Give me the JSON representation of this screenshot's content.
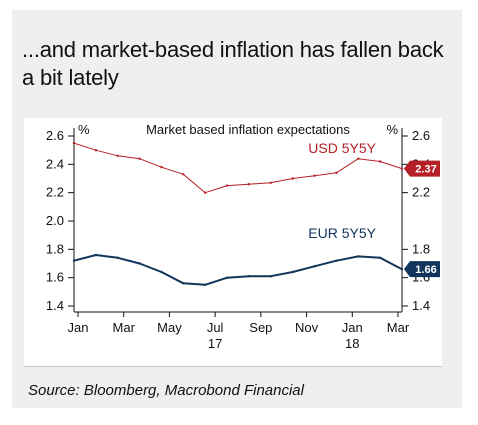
{
  "headline": "...and market-based inflation has fallen back a bit lately",
  "source": "Source: Bloomberg, Macrobond Financial",
  "colors": {
    "usd": "#b42025",
    "eur": "#12355b",
    "grid": "#cfcfcf",
    "text": "#111111"
  },
  "chart_data": {
    "type": "line",
    "title": "Market based inflation expectations",
    "y_unit_left": "%",
    "y_unit_right": "%",
    "ylim": [
      1.4,
      2.6
    ],
    "y_ticks": [
      "1.4",
      "1.6",
      "1.8",
      "2.0",
      "2.2",
      "2.4",
      "2.6"
    ],
    "y_ticks_right": [
      "1.4",
      "1.6",
      "1.8",
      "2.2",
      "2.4",
      "2.6"
    ],
    "x_ticks": [
      "Jan",
      "Mar",
      "May",
      "Jul",
      "Sep",
      "Nov",
      "Jan",
      "Mar"
    ],
    "x_year_labels": [
      "17",
      "18"
    ],
    "grid": false,
    "x": [
      "2016-12",
      "2017-01",
      "2017-02",
      "2017-03",
      "2017-04",
      "2017-05",
      "2017-06",
      "2017-07",
      "2017-08",
      "2017-09",
      "2017-10",
      "2017-11",
      "2017-12",
      "2018-01",
      "2018-02",
      "2018-03"
    ],
    "series": [
      {
        "name": "USD 5Y5Y",
        "last_value": "2.37",
        "values": [
          2.55,
          2.5,
          2.46,
          2.44,
          2.38,
          2.33,
          2.2,
          2.25,
          2.26,
          2.27,
          2.3,
          2.32,
          2.34,
          2.44,
          2.42,
          2.37
        ]
      },
      {
        "name": "EUR 5Y5Y",
        "last_value": "1.66",
        "values": [
          1.72,
          1.76,
          1.74,
          1.7,
          1.64,
          1.56,
          1.55,
          1.6,
          1.61,
          1.61,
          1.64,
          1.68,
          1.72,
          1.75,
          1.74,
          1.66
        ]
      }
    ]
  }
}
